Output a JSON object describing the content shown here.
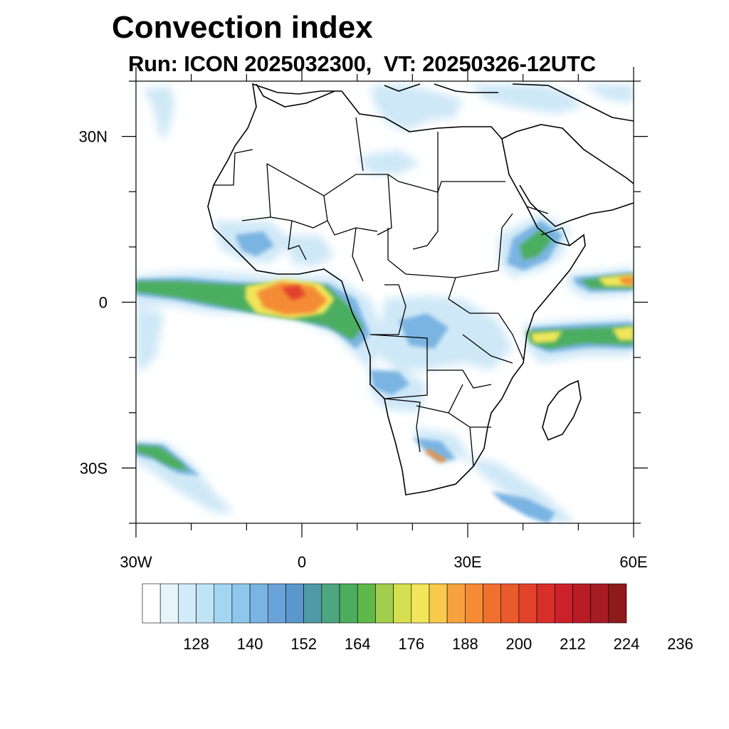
{
  "title": "Convection index",
  "subtitle": "Run: ICON 2025032300,  VT: 20250326-12UTC",
  "map": {
    "region": "Africa",
    "lon_range": [
      -30,
      60
    ],
    "lat_range": [
      -40,
      40
    ],
    "lat_ticks": [
      {
        "value": 30,
        "label": "30N"
      },
      {
        "value": 0,
        "label": "0"
      },
      {
        "value": -30,
        "label": "30S"
      }
    ],
    "lon_ticks": [
      {
        "value": -30,
        "label": "30W"
      },
      {
        "value": 0,
        "label": "0"
      },
      {
        "value": 30,
        "label": "30E"
      },
      {
        "value": 60,
        "label": "60E"
      }
    ]
  },
  "colorbar": {
    "colors": [
      "#ffffff",
      "#e8f4fb",
      "#d2ebf8",
      "#bfe4f6",
      "#a3d6f2",
      "#8dc8ec",
      "#7ab4e2",
      "#6aa3d9",
      "#5a97cd",
      "#4f9aa6",
      "#4da67f",
      "#4cad5f",
      "#5fb849",
      "#a3ce4d",
      "#d6df4f",
      "#f2e65a",
      "#f8c94c",
      "#f7a23f",
      "#f58c35",
      "#f07030",
      "#e95a2c",
      "#e2432a",
      "#d92f2b",
      "#cc212a",
      "#b81c26",
      "#a71b22",
      "#8e1a1b"
    ],
    "labels": [
      "128",
      "140",
      "152",
      "164",
      "176",
      "188",
      "200",
      "212",
      "224",
      "236"
    ]
  }
}
